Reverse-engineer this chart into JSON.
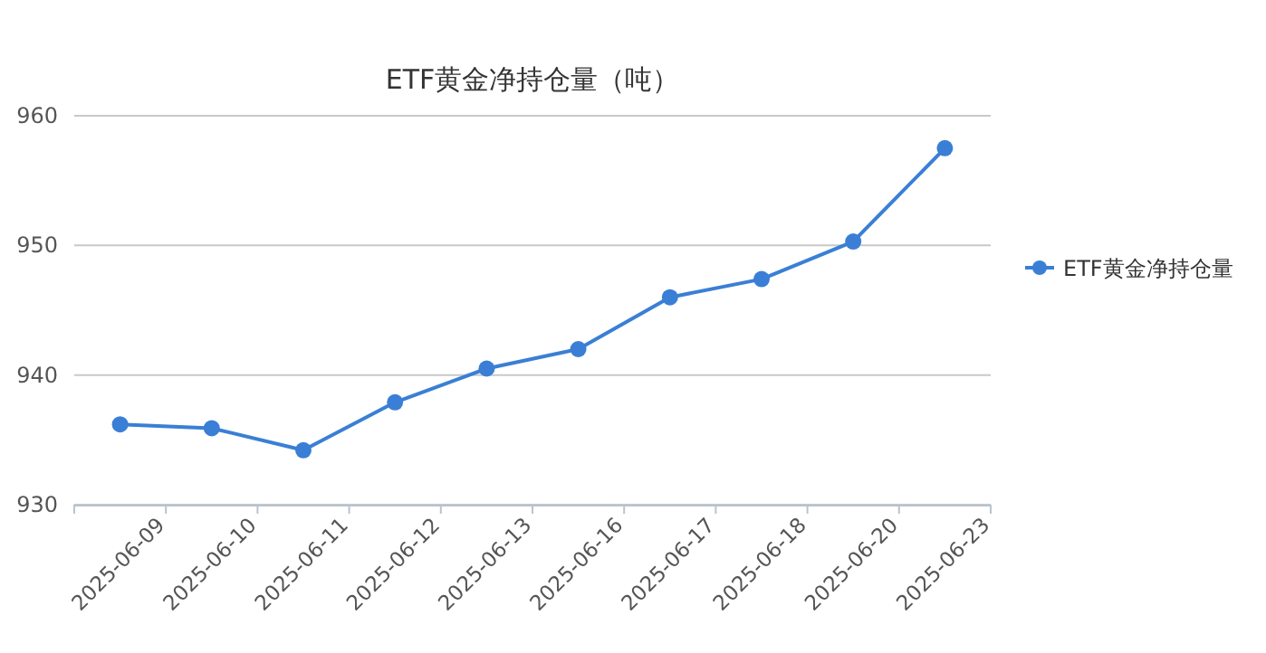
{
  "chart_data": {
    "type": "line",
    "title": "ETF黄金净持仓量（吨）",
    "categories": [
      "2025-06-09",
      "2025-06-10",
      "2025-06-11",
      "2025-06-12",
      "2025-06-13",
      "2025-06-16",
      "2025-06-17",
      "2025-06-18",
      "2025-06-20",
      "2025-06-23"
    ],
    "series": [
      {
        "name": "ETF黄金净持仓量",
        "color": "#3a7fd5",
        "values": [
          936.2,
          935.9,
          934.2,
          937.9,
          940.5,
          942.0,
          946.0,
          947.4,
          950.3,
          957.5
        ]
      }
    ],
    "ylim": [
      930,
      960
    ],
    "yticks": [
      930,
      940,
      950,
      960
    ],
    "grid": "y",
    "legend": "right",
    "marker": "circle",
    "line_style": "solid"
  }
}
